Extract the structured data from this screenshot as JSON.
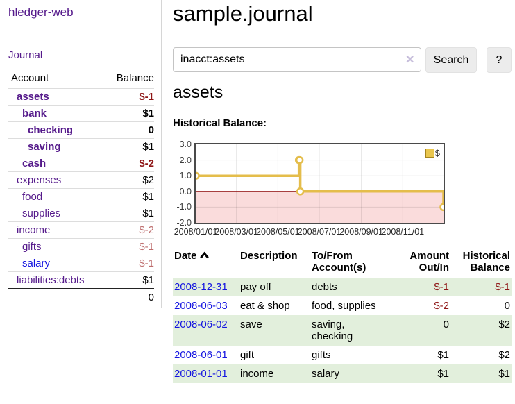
{
  "app": {
    "title": "hledger-web"
  },
  "nav": {
    "journal": "Journal"
  },
  "colors": {
    "link_purple": "#551a8b",
    "link_blue": "#1414e0",
    "negative": "#8e1515",
    "negative_muted": "#bd6c6c",
    "row_green": "#e2efdc",
    "chart_gold": "#e4bd4b",
    "negative_region_pink": "#fadcdc",
    "zero_line_red": "#8b0000"
  },
  "sidebar": {
    "headers": {
      "account": "Account",
      "balance": "Balance"
    },
    "accounts": [
      {
        "name": "assets",
        "balance": "$-1"
      },
      {
        "name": "bank",
        "balance": "$1"
      },
      {
        "name": "checking",
        "balance": "0"
      },
      {
        "name": "saving",
        "balance": "$1"
      },
      {
        "name": "cash",
        "balance": "$-2"
      },
      {
        "name": "expenses",
        "balance": "$2"
      },
      {
        "name": "food",
        "balance": "$1"
      },
      {
        "name": "supplies",
        "balance": "$1"
      },
      {
        "name": "income",
        "balance": "$-2"
      },
      {
        "name": "gifts",
        "balance": "$-1"
      },
      {
        "name": "salary",
        "balance": "$-1"
      },
      {
        "name": "liabilities:debts",
        "balance": "$1"
      }
    ],
    "total": "0"
  },
  "main": {
    "title": "sample.journal",
    "search": {
      "value": "inacct:assets",
      "clear": "✕",
      "button": "Search",
      "help": "?"
    },
    "account_heading": "assets",
    "section_label": "Historical Balance:"
  },
  "chart_data": {
    "type": "line",
    "title": "Historical Balance",
    "legend": [
      {
        "label": "$",
        "color": "#e9c64e"
      }
    ],
    "ylim": [
      -2,
      3
    ],
    "xlim_days": [
      0,
      365
    ],
    "y_tick_labels": [
      "3.0",
      "2.0",
      "1.0",
      "0.0",
      "-1.0",
      "-2.0"
    ],
    "x_ticks": [
      {
        "day": 0,
        "label": "2008/01/01"
      },
      {
        "day": 60,
        "label": "2008/03/01"
      },
      {
        "day": 121,
        "label": "2008/05/01"
      },
      {
        "day": 182,
        "label": "2008/07/01"
      },
      {
        "day": 244,
        "label": "2008/09/01"
      },
      {
        "day": 305,
        "label": "2008/11/01"
      }
    ],
    "series": [
      {
        "name": "$",
        "color": "#e4bd4b",
        "step": true,
        "points": [
          {
            "date": "2008-01-01",
            "day": 0,
            "value": 1
          },
          {
            "date": "2008-06-01",
            "day": 152,
            "value": 2
          },
          {
            "date": "2008-06-02",
            "day": 153,
            "value": 2
          },
          {
            "date": "2008-06-03",
            "day": 154,
            "value": 0
          },
          {
            "date": "2008-12-31",
            "day": 365,
            "value": -1
          }
        ]
      }
    ],
    "negative_region_color": "#fadcdc",
    "zero_line_color": "#8b0000",
    "grid": true,
    "legend_position": "top-right"
  },
  "register": {
    "headers": {
      "date": "Date",
      "description": "Description",
      "accounts": "To/From\nAccount(s)",
      "amount": "Amount\nOut/In",
      "balance": "Historical\nBalance"
    },
    "rows": [
      {
        "date": "2008-12-31",
        "description": "pay off",
        "accounts": "debts",
        "amount": "$-1",
        "balance": "$-1"
      },
      {
        "date": "2008-06-03",
        "description": "eat & shop",
        "accounts": "food, supplies",
        "amount": "$-2",
        "balance": "0"
      },
      {
        "date": "2008-06-02",
        "description": "save",
        "accounts": "saving,\nchecking",
        "amount": "0",
        "balance": "$2"
      },
      {
        "date": "2008-06-01",
        "description": "gift",
        "accounts": "gifts",
        "amount": "$1",
        "balance": "$2"
      },
      {
        "date": "2008-01-01",
        "description": "income",
        "accounts": "salary",
        "amount": "$1",
        "balance": "$1"
      }
    ]
  }
}
